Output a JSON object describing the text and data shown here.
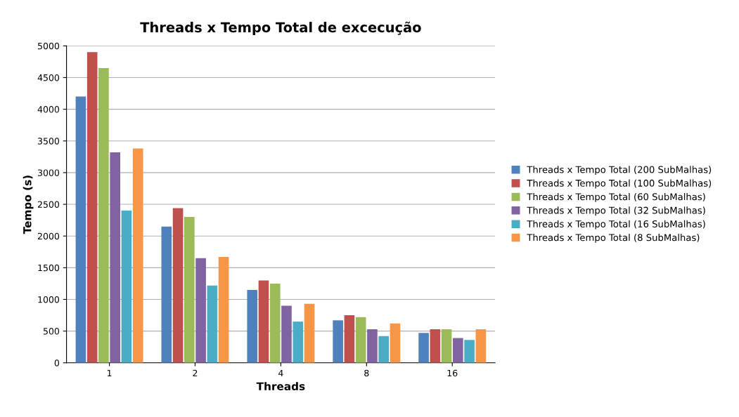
{
  "chart_data": {
    "type": "bar",
    "title": "Threads x Tempo Total de excecução",
    "xlabel": "Threads",
    "ylabel": "Tempo (s)",
    "categories": [
      "1",
      "2",
      "4",
      "8",
      "16"
    ],
    "series": [
      {
        "name": "Threads x Tempo Total (200 SubMalhas)",
        "color": "#4f81bd",
        "values": [
          4200,
          2150,
          1150,
          670,
          470
        ]
      },
      {
        "name": "Threads x Tempo Total (100 SubMalhas)",
        "color": "#c0504d",
        "values": [
          4900,
          2440,
          1300,
          750,
          530
        ]
      },
      {
        "name": "Threads x Tempo Total (60 SubMalhas)",
        "color": "#9bbb59",
        "values": [
          4650,
          2300,
          1250,
          720,
          530
        ]
      },
      {
        "name": "Threads x Tempo Total (32 SubMalhas)",
        "color": "#8064a2",
        "values": [
          3320,
          1650,
          900,
          530,
          390
        ]
      },
      {
        "name": "Threads x Tempo Total (16 SubMalhas)",
        "color": "#4bacc6",
        "values": [
          2400,
          1220,
          650,
          420,
          360
        ]
      },
      {
        "name": "Threads x Tempo Total (8 SubMalhas)",
        "color": "#f79646",
        "values": [
          3380,
          1670,
          930,
          620,
          530
        ]
      }
    ],
    "ylim": [
      0,
      5000
    ],
    "yticks": [
      0,
      500,
      1000,
      1500,
      2000,
      2500,
      3000,
      3500,
      4000,
      4500,
      5000
    ],
    "grid": "y",
    "legend": "right"
  }
}
